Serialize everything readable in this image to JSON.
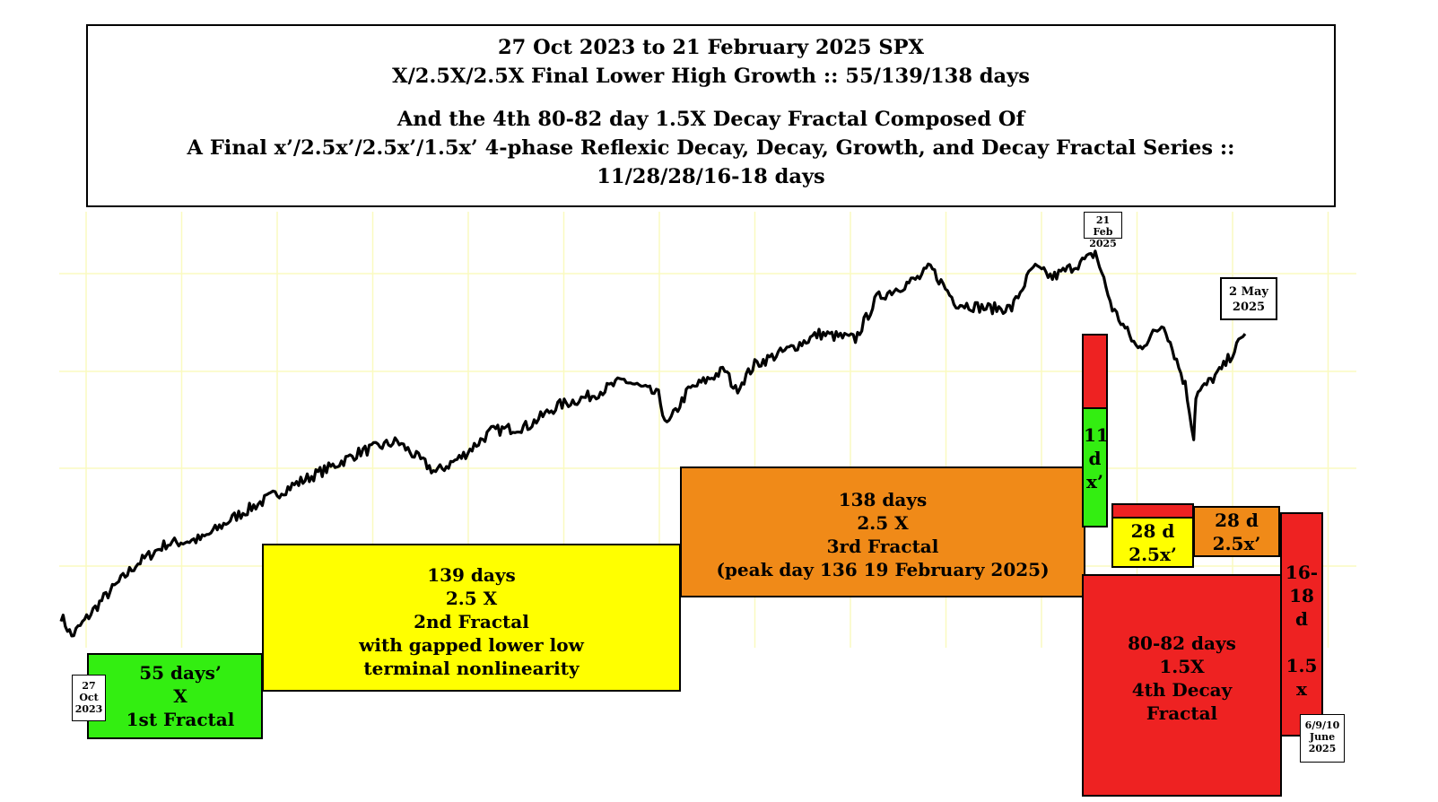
{
  "header": {
    "line1": "27 Oct 2023 to 21 February 2025 SPX",
    "line2": "X/2.5X/2.5X Final Lower High Growth :: 55/139/138 days",
    "line3": "And the 4th 80-82 day 1.5X Decay Fractal Composed Of",
    "line4": "A Final x’/2.5x’/2.5x’/1.5x’ 4-phase Reflexic Decay, Decay, Growth, and Decay Fractal Series ::",
    "line5": "11/28/28/16-18 days"
  },
  "colors": {
    "green": "#33ee11",
    "yellow": "#ffff00",
    "orange": "#f08a18",
    "red": "#ee2222",
    "grid": "#fafac0",
    "price": "#000000"
  },
  "boxes": {
    "f1": {
      "l1": "55 days’",
      "l2": "X",
      "l3": "1st Fractal"
    },
    "f2": {
      "l1": "139 days",
      "l2": "2.5 X",
      "l3": "2nd Fractal",
      "l4": "with gapped lower low",
      "l5": "terminal nonlinearity"
    },
    "f3": {
      "l1": "138 days",
      "l2": "2.5 X",
      "l3": "3rd Fractal",
      "l4": "(peak day 136   19 February 2025)"
    },
    "f4": {
      "l1": "80-82 days",
      "l2": "1.5X",
      "l3": "4th Decay",
      "l4": "Fractal"
    },
    "sub1": {
      "l1": "11",
      "l2": "d",
      "l3": "x’"
    },
    "sub2": {
      "l1": "28 d",
      "l2": "2.5x’"
    },
    "sub3": {
      "l1": "28 d",
      "l2": "2.5x’"
    },
    "sub4": {
      "l1": "16-",
      "l2": "18",
      "l3": "d",
      "l4": "1.5",
      "l5": "x"
    }
  },
  "tags": {
    "start": {
      "l1": "27",
      "l2": "Oct",
      "l3": "2023"
    },
    "peak": {
      "l1": "21 Feb",
      "l2": "2025"
    },
    "may": {
      "l1": "2 May",
      "l2": "2025"
    },
    "june": {
      "l1": "6/9/10",
      "l2": "June",
      "l3": "2025"
    }
  },
  "chart_data": {
    "type": "line",
    "title": "27 Oct 2023 to 21 February 2025 SPX",
    "series": [
      {
        "x": [
          "2023-10-27",
          "2023-11-01",
          "2023-11-15",
          "2023-12-01",
          "2023-12-15",
          "2024-01-01",
          "2024-01-15",
          "2024-02-01",
          "2024-02-15",
          "2024-03-01",
          "2024-03-15",
          "2024-04-01",
          "2024-04-19",
          "2024-05-01",
          "2024-05-15",
          "2024-06-01",
          "2024-06-15",
          "2024-07-01",
          "2024-07-16",
          "2024-08-01",
          "2024-08-05",
          "2024-08-15",
          "2024-09-01",
          "2024-09-06",
          "2024-09-15",
          "2024-10-01",
          "2024-10-15",
          "2024-11-01",
          "2024-11-11",
          "2024-12-01",
          "2024-12-06",
          "2024-12-18",
          "2025-01-01",
          "2025-01-13",
          "2025-01-23",
          "2025-02-01",
          "2025-02-19",
          "2025-02-21",
          "2025-03-01",
          "2025-03-13",
          "2025-03-25",
          "2025-04-04",
          "2025-04-08",
          "2025-04-09",
          "2025-04-21",
          "2025-05-02"
        ],
        "values": [
          100,
          96,
          103,
          110,
          114,
          115,
          119,
          123,
          126,
          129,
          132,
          134,
          128,
          131,
          136,
          137,
          141,
          143,
          146,
          143,
          137,
          144,
          148,
          144,
          149,
          152,
          155,
          154,
          162,
          166,
          168,
          161,
          160,
          160,
          168,
          166,
          170,
          171,
          160,
          152,
          157,
          145,
          135,
          143,
          148,
          155
        ]
      }
    ],
    "grid": true,
    "legend": "none"
  }
}
